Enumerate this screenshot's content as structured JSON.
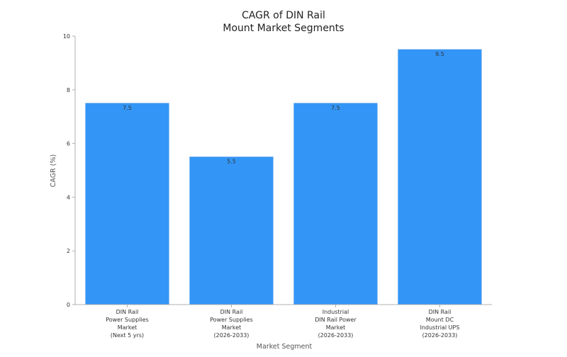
{
  "chart_data": {
    "type": "bar",
    "title_lines": [
      "CAGR of DIN Rail",
      "Mount Market Segments"
    ],
    "xlabel": "Market Segment",
    "ylabel": "CAGR (%)",
    "ylim": [
      0,
      10
    ],
    "yticks": [
      0,
      2,
      4,
      6,
      8,
      10
    ],
    "grid": false,
    "bar_color": "#3396F7",
    "categories": [
      [
        "DIN Rail",
        "Power Supplies",
        "Market",
        "(Next 5 yrs)"
      ],
      [
        "DIN Rail",
        "Power Supplies",
        "Market",
        "(2026-2033)"
      ],
      [
        "Industrial",
        "DIN Rail Power",
        "Market",
        "(2026-2033)"
      ],
      [
        "DIN Rail",
        "Mount DC",
        "Industrial UPS",
        "(2026-2033)"
      ]
    ],
    "values": [
      7.5,
      5.5,
      7.5,
      9.5
    ],
    "data_labels": [
      "7.5",
      "5.5",
      "7.5",
      "9.5"
    ]
  }
}
